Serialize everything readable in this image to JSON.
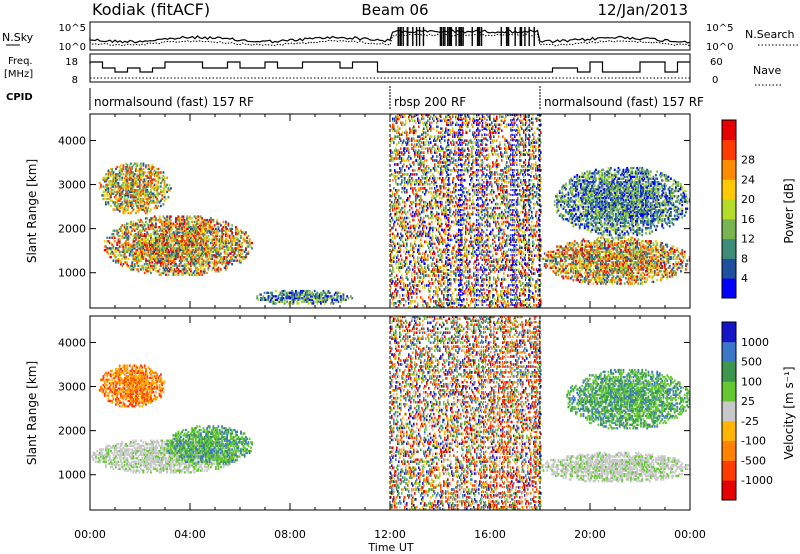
{
  "header": {
    "station": "Kodiak (fitACF)",
    "beam": "Beam 06",
    "date": "12/Jan/2013"
  },
  "noise_panel": {
    "left_label": "N.Sky",
    "right_label": "N.Search",
    "left_ticks": [
      "10^5",
      "10^0"
    ],
    "right_ticks": [
      "10^5",
      "10^0"
    ]
  },
  "freq_panel": {
    "left_label_1": "Freq.",
    "left_label_2": "[MHz]",
    "right_label": "Nave",
    "left_ticks": [
      "18",
      "8"
    ],
    "right_ticks": [
      "60",
      "0"
    ]
  },
  "cpid": {
    "label": "CPID",
    "segments": [
      {
        "text": "normalsound (fast) 157 RF",
        "start": 0,
        "end": 12
      },
      {
        "text": "rbsp 200 RF",
        "start": 12,
        "end": 18
      },
      {
        "text": "normalsound (fast) 157 RF",
        "start": 18,
        "end": 24
      }
    ]
  },
  "time_axis": {
    "label": "Time UT",
    "ticks": [
      "00:00",
      "04:00",
      "08:00",
      "12:00",
      "16:00",
      "20:00",
      "00:00"
    ]
  },
  "chart_data": [
    {
      "type": "heatmap",
      "quantity": "Power",
      "ylabel": "Slant Range [km]",
      "xlabel": "Time UT",
      "xlim": [
        0,
        24
      ],
      "ylim": [
        200,
        4600
      ],
      "yticks": [
        1000,
        2000,
        3000,
        4000
      ],
      "colorbar": {
        "label": "Power [dB]",
        "ticks": [
          "4",
          "8",
          "12",
          "16",
          "20",
          "24",
          "28"
        ],
        "colors": [
          "#0000ff",
          "#1e50a0",
          "#3c8c78",
          "#78b450",
          "#b4dc28",
          "#ffc800",
          "#ff8c00",
          "#ff3c00",
          "#e60000"
        ]
      },
      "regions": [
        {
          "t0": 0.3,
          "t1": 3.2,
          "r0": 2300,
          "r1": 3500,
          "level": "high-mid"
        },
        {
          "t0": 0.5,
          "t1": 6.5,
          "r0": 900,
          "r1": 2300,
          "level": "high"
        },
        {
          "t0": 6.5,
          "t1": 10.5,
          "r0": 250,
          "r1": 600,
          "level": "mid"
        },
        {
          "t0": 12.0,
          "t1": 18.0,
          "r0": 200,
          "r1": 4600,
          "level": "scatter"
        },
        {
          "t0": 18.0,
          "t1": 24.0,
          "r0": 700,
          "r1": 1800,
          "level": "high"
        },
        {
          "t0": 18.5,
          "t1": 24.0,
          "r0": 1800,
          "r1": 3400,
          "level": "mid"
        }
      ]
    },
    {
      "type": "heatmap",
      "quantity": "Velocity",
      "ylabel": "Slant Range [km]",
      "xlabel": "Time UT",
      "xlim": [
        0,
        24
      ],
      "ylim": [
        200,
        4600
      ],
      "yticks": [
        1000,
        2000,
        3000,
        4000
      ],
      "colorbar": {
        "label": "Velocity [m s⁻¹]",
        "ticks": [
          "1000",
          "500",
          "100",
          "25",
          "-25",
          "-100",
          "-500",
          "-1000"
        ],
        "colors": [
          "#1414c8",
          "#3c78c8",
          "#3c9650",
          "#64c832",
          "#c8c8c8",
          "#ffb400",
          "#ff8200",
          "#ff3c00",
          "#e60000"
        ]
      },
      "regions": [
        {
          "t0": 0.3,
          "t1": 3.0,
          "r0": 2500,
          "r1": 3500,
          "level": "negative"
        },
        {
          "t0": 0.0,
          "t1": 6.0,
          "r0": 1000,
          "r1": 1800,
          "level": "near-zero"
        },
        {
          "t0": 3.0,
          "t1": 6.5,
          "r0": 1200,
          "r1": 2100,
          "level": "positive"
        },
        {
          "t0": 12.0,
          "t1": 18.0,
          "r0": 200,
          "r1": 4600,
          "level": "scatter"
        },
        {
          "t0": 18.0,
          "t1": 24.0,
          "r0": 800,
          "r1": 1500,
          "level": "near-zero"
        },
        {
          "t0": 19.0,
          "t1": 24.0,
          "r0": 2000,
          "r1": 3400,
          "level": "positive"
        }
      ]
    }
  ]
}
